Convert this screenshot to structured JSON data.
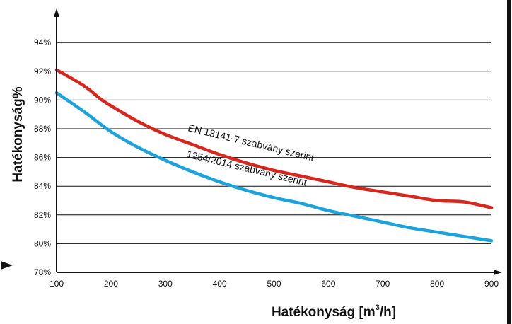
{
  "chart_data": {
    "type": "line",
    "xlabel": "Hatékonyság [m³/h]",
    "xlabel_parts": {
      "main": "Hatékonyság [m",
      "superscript": "3",
      "tail": "/h]"
    },
    "ylabel": "Hatékonyság%",
    "xlim": [
      100,
      900
    ],
    "ylim": [
      78,
      96
    ],
    "x_ticks": [
      100,
      200,
      300,
      400,
      500,
      600,
      700,
      800,
      900
    ],
    "x_tick_labels": [
      "100",
      "200",
      "300",
      "400",
      "500",
      "600",
      "700",
      "800",
      "900"
    ],
    "y_ticks": [
      78,
      80,
      82,
      84,
      86,
      88,
      90,
      92,
      94
    ],
    "y_tick_labels": [
      "78%",
      "80%",
      "82%",
      "84%",
      "86%",
      "88%",
      "90%",
      "92%",
      "94%"
    ],
    "grid": true,
    "legend": "none",
    "series": [
      {
        "name": "EN 13141-7 szabvány szerint",
        "color": "#d9261c",
        "x": [
          100,
          150,
          180,
          200,
          250,
          300,
          350,
          400,
          450,
          500,
          550,
          600,
          650,
          700,
          750,
          800,
          850,
          900
        ],
        "values": [
          92.1,
          91.0,
          90.1,
          89.6,
          88.5,
          87.6,
          86.9,
          86.2,
          85.6,
          85.1,
          84.7,
          84.3,
          83.9,
          83.6,
          83.3,
          83.0,
          82.9,
          82.5
        ]
      },
      {
        "name": "1254/2014 szabvány szerint",
        "color": "#1ba3dd",
        "x": [
          100,
          150,
          200,
          250,
          300,
          350,
          400,
          450,
          500,
          550,
          600,
          650,
          700,
          750,
          800,
          850,
          900
        ],
        "values": [
          90.5,
          89.2,
          87.8,
          86.7,
          85.8,
          85.0,
          84.3,
          83.7,
          83.2,
          82.8,
          82.3,
          81.9,
          81.5,
          81.1,
          80.8,
          80.5,
          80.2
        ]
      }
    ]
  }
}
